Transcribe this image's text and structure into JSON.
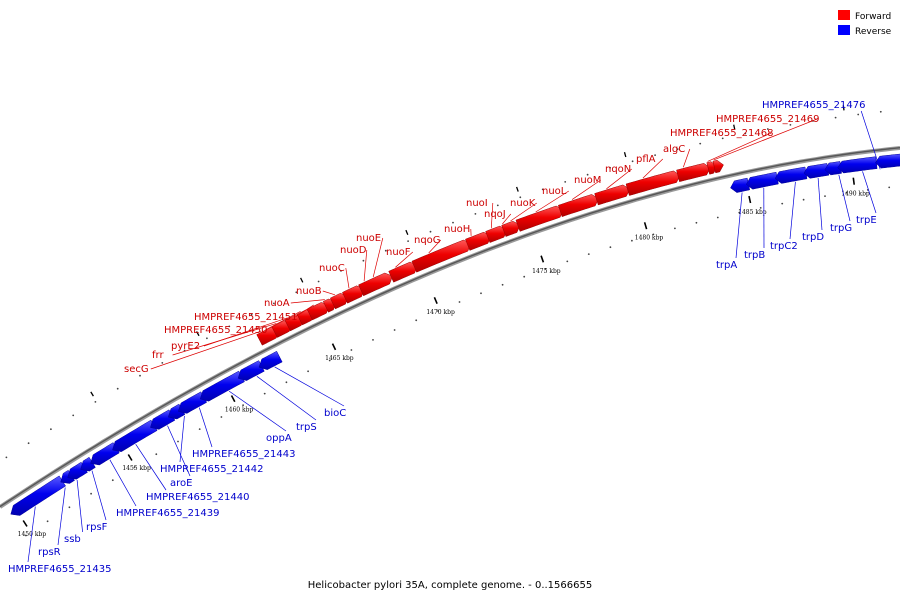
{
  "caption": "Helicobacter pylori 35A, complete genome. - 0..1566655",
  "legend": [
    {
      "label": "Forward",
      "color": "#ff0000"
    },
    {
      "label": "Reverse",
      "color": "#0000ff"
    }
  ],
  "ticks": [
    "1450 kbp",
    "1455 kbp",
    "1460 kbp",
    "1465 kbp",
    "1470 kbp",
    "1475 kbp",
    "1480 kbp",
    "1485 kbp",
    "1490 kbp"
  ],
  "forward_genes": [
    "secG",
    "frr",
    "pyrE2",
    "HMPREF4655_21450",
    "HMPREF4655_21451",
    "nuoA",
    "nuoB",
    "nuoC",
    "nuoD",
    "nuoE",
    "nuoF",
    "nqoG",
    "nuoH",
    "nuoI",
    "nqoJ",
    "nuoK",
    "nuoL",
    "nuoM",
    "nqoN",
    "pflA",
    "algC",
    "HMPREF4655_21468",
    "HMPREF4655_21469"
  ],
  "reverse_genes": [
    "HMPREF4655_21435",
    "rpsR",
    "ssb",
    "rpsF",
    "HMPREF4655_21439",
    "HMPREF4655_21440",
    "aroE",
    "HMPREF4655_21442",
    "HMPREF4655_21443",
    "oppA",
    "trpS",
    "bioC",
    "trpA",
    "trpB",
    "trpC2",
    "trpD",
    "trpG",
    "trpE",
    "HMPREF4655_21476"
  ]
}
